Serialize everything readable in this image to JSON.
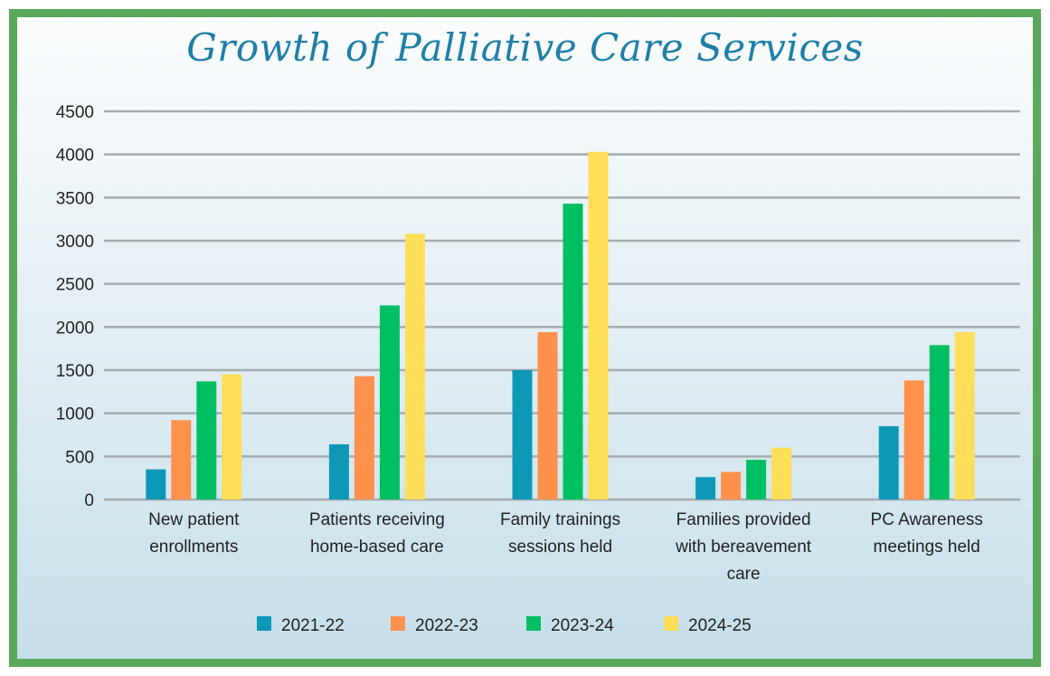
{
  "chart_data": {
    "type": "bar",
    "title": "Growth of Palliative Care Services",
    "xlabel": "",
    "ylabel": "",
    "ylim": [
      0,
      4500
    ],
    "yticks": [
      0,
      500,
      1000,
      1500,
      2000,
      2500,
      3000,
      3500,
      4000,
      4500
    ],
    "grid": true,
    "legend_position": "bottom",
    "categories": [
      [
        "New patient",
        "enrollments"
      ],
      [
        "Patients receiving",
        "home-based care"
      ],
      [
        "Family trainings",
        "sessions held"
      ],
      [
        "Families provided",
        "with bereavement",
        "care"
      ],
      [
        "PC Awareness",
        "meetings held"
      ]
    ],
    "series": [
      {
        "name": "2021-22",
        "color": "#0e98b8",
        "values": [
          350,
          640,
          1500,
          260,
          850
        ]
      },
      {
        "name": "2022-23",
        "color": "#ff914d",
        "values": [
          920,
          1430,
          1940,
          320,
          1380
        ]
      },
      {
        "name": "2023-24",
        "color": "#00bf63",
        "values": [
          1370,
          2250,
          3430,
          460,
          1790
        ]
      },
      {
        "name": "2024-25",
        "color": "#ffde59",
        "values": [
          1450,
          3080,
          4030,
          600,
          1940
        ]
      }
    ]
  }
}
